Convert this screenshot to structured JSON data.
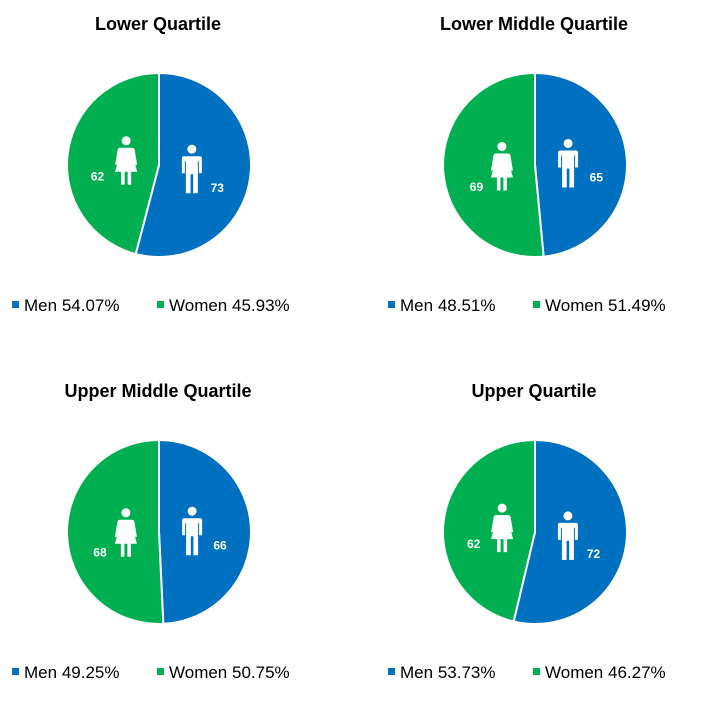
{
  "colors": {
    "men": "#0070c0",
    "women": "#00b050"
  },
  "icons": {
    "men": "man-icon",
    "women": "woman-icon"
  },
  "chart_data": [
    {
      "type": "pie",
      "title": "Lower Quartile",
      "slices": [
        {
          "name": "Men",
          "value": 73,
          "percent_label": "54.07%"
        },
        {
          "name": "Women",
          "value": 62,
          "percent_label": "45.93%"
        }
      ],
      "legend_position": "bottom"
    },
    {
      "type": "pie",
      "title": "Lower Middle Quartile",
      "slices": [
        {
          "name": "Men",
          "value": 65,
          "percent_label": "48.51%"
        },
        {
          "name": "Women",
          "value": 69,
          "percent_label": "51.49%"
        }
      ],
      "legend_position": "bottom"
    },
    {
      "type": "pie",
      "title": "Upper Middle Quartile",
      "slices": [
        {
          "name": "Men",
          "value": 66,
          "percent_label": "49.25%"
        },
        {
          "name": "Women",
          "value": 68,
          "percent_label": "50.75%"
        }
      ],
      "legend_position": "bottom"
    },
    {
      "type": "pie",
      "title": "Upper Quartile",
      "slices": [
        {
          "name": "Men",
          "value": 72,
          "percent_label": "53.73%"
        },
        {
          "name": "Women",
          "value": 62,
          "percent_label": "46.27%"
        }
      ],
      "legend_position": "bottom"
    }
  ]
}
